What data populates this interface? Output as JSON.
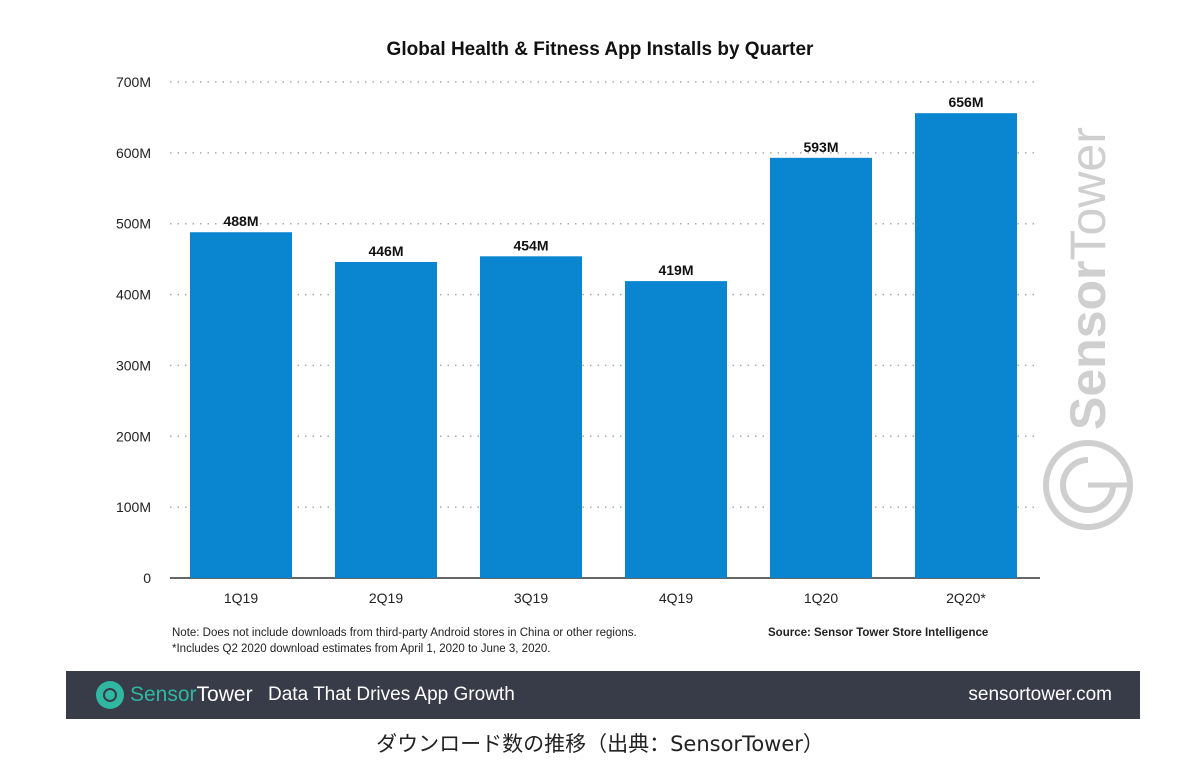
{
  "chart_data": {
    "type": "bar",
    "title": "Global Health & Fitness App Installs by Quarter",
    "categories": [
      "1Q19",
      "2Q19",
      "3Q19",
      "4Q19",
      "1Q20",
      "2Q20*"
    ],
    "values": [
      488,
      446,
      454,
      419,
      593,
      656
    ],
    "data_labels": [
      "488M",
      "446M",
      "454M",
      "419M",
      "593M",
      "656M"
    ],
    "unit": "M",
    "ylim": [
      0,
      700
    ],
    "y_ticks": [
      0,
      100,
      200,
      300,
      400,
      500,
      600,
      700
    ],
    "y_tick_labels": [
      "0",
      "100M",
      "200M",
      "300M",
      "400M",
      "500M",
      "600M",
      "700M"
    ],
    "grid": true,
    "legend": "none",
    "bar_color": "#0a86d0"
  },
  "notes": {
    "note1": "Note: Does not include downloads from third-party Android stores in China or other regions.",
    "note2": "*Includes Q2 2020 download estimates from April 1, 2020 to June 3, 2020.",
    "source": "Source: Sensor Tower Store Intelligence"
  },
  "watermark": {
    "text_bold": "Sensor",
    "text_light": "Tower"
  },
  "footer": {
    "brand_a": "Sensor",
    "brand_b": "Tower",
    "tagline": "Data That Drives App Growth",
    "site": "sensortower.com",
    "brand_color": "#2fb7a2",
    "background": "#383b48"
  },
  "caption": "ダウンロード数の推移（出典：SensorTower）"
}
